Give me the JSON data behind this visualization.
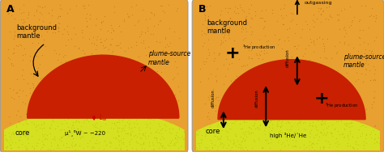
{
  "bg_mantle_color": "#E8A030",
  "plume_mantle_color": "#C82000",
  "core_color": "#D4E020",
  "core_dot_color": "#B8C800",
  "dot_color": "#C07818",
  "panel_bg": "#FFFFFF",
  "border_color": "#999999",
  "label_A": "A",
  "label_B": "B",
  "bg_mantle_text": "background\nmantle",
  "plume_source_text": "plume-source\nmantle",
  "core_text": "core",
  "mu_text": "μ¹¸⁶W ~ −220",
  "high_he_text": "high ³He/´He",
  "outgassing_text": "outgassing",
  "figsize": [
    4.74,
    1.88
  ],
  "dpi": 100
}
